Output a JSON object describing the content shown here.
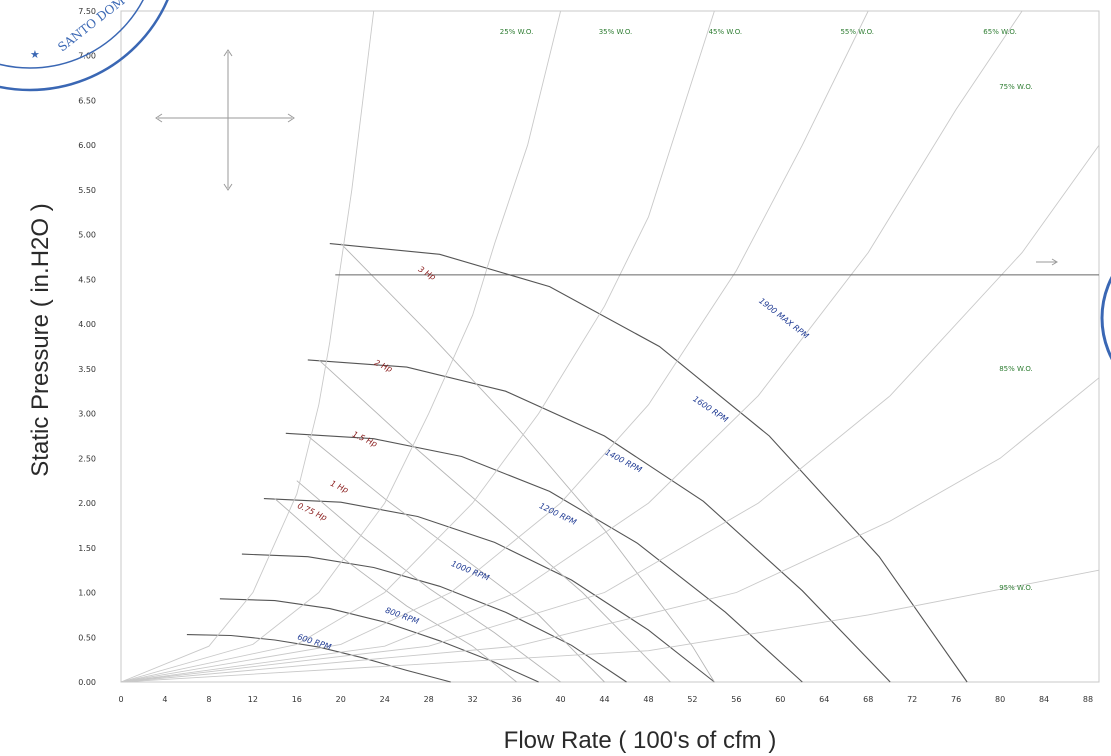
{
  "chart_data": {
    "type": "line",
    "xlabel": "Flow Rate ( 100's of cfm )",
    "ylabel": "Static Pressure ( in.H2O )",
    "xlim": [
      0,
      89
    ],
    "ylim": [
      0,
      7.5
    ],
    "x_ticks": [
      "0",
      "4",
      "8",
      "12",
      "16",
      "20",
      "24",
      "28",
      "32",
      "36",
      "40",
      "44",
      "48",
      "52",
      "56",
      "60",
      "64",
      "68",
      "72",
      "76",
      "80",
      "84",
      "88"
    ],
    "y_ticks": [
      "0.00",
      "0.50",
      "1.00",
      "1.50",
      "2.00",
      "2.50",
      "3.00",
      "3.50",
      "4.00",
      "4.50",
      "5.00",
      "5.50",
      "6.00",
      "6.50",
      "7.00",
      "7.50"
    ],
    "grid": false,
    "operating_point": {
      "static_pressure": 4.55
    },
    "colors": {
      "rpm": "#1f3a93",
      "hp": "#8a1d1d",
      "efficiency": "#2e7d32",
      "curve": "#555555",
      "system": "#999999"
    },
    "series": [
      {
        "name": "600 RPM",
        "type": "rpm",
        "points": [
          [
            6,
            0.53
          ],
          [
            10,
            0.52
          ],
          [
            14,
            0.47
          ],
          [
            18,
            0.39
          ],
          [
            22,
            0.27
          ],
          [
            26,
            0.13
          ],
          [
            30,
            0.0
          ]
        ]
      },
      {
        "name": "800 RPM",
        "type": "rpm",
        "points": [
          [
            9,
            0.93
          ],
          [
            14,
            0.91
          ],
          [
            19,
            0.82
          ],
          [
            24,
            0.67
          ],
          [
            29,
            0.46
          ],
          [
            34,
            0.22
          ],
          [
            38,
            0.0
          ]
        ]
      },
      {
        "name": "1000 RPM",
        "type": "rpm",
        "points": [
          [
            11,
            1.43
          ],
          [
            17,
            1.4
          ],
          [
            23,
            1.28
          ],
          [
            29,
            1.07
          ],
          [
            35,
            0.78
          ],
          [
            41,
            0.41
          ],
          [
            46,
            0.0
          ]
        ]
      },
      {
        "name": "1200 RPM",
        "type": "rpm",
        "points": [
          [
            13,
            2.05
          ],
          [
            20,
            2.01
          ],
          [
            27,
            1.85
          ],
          [
            34,
            1.56
          ],
          [
            41,
            1.14
          ],
          [
            48,
            0.58
          ],
          [
            54,
            0.0
          ]
        ]
      },
      {
        "name": "1400 RPM",
        "type": "rpm",
        "points": [
          [
            15,
            2.78
          ],
          [
            23,
            2.72
          ],
          [
            31,
            2.52
          ],
          [
            39,
            2.13
          ],
          [
            47,
            1.55
          ],
          [
            55,
            0.78
          ],
          [
            62,
            0.0
          ]
        ]
      },
      {
        "name": "1600 RPM",
        "type": "rpm",
        "points": [
          [
            17,
            3.6
          ],
          [
            26,
            3.52
          ],
          [
            35,
            3.25
          ],
          [
            44,
            2.75
          ],
          [
            53,
            2.02
          ],
          [
            62,
            1.02
          ],
          [
            70,
            0.0
          ]
        ]
      },
      {
        "name": "1900 MAX RPM",
        "type": "rpm",
        "points": [
          [
            19,
            4.9
          ],
          [
            29,
            4.78
          ],
          [
            39,
            4.42
          ],
          [
            49,
            3.75
          ],
          [
            59,
            2.75
          ],
          [
            69,
            1.4
          ],
          [
            77,
            0.0
          ]
        ]
      },
      {
        "name": "0.75 Hp",
        "type": "hp",
        "points": [
          [
            14,
            2.05
          ],
          [
            20,
            1.4
          ],
          [
            26,
            0.85
          ],
          [
            32,
            0.4
          ],
          [
            36,
            0.0
          ]
        ]
      },
      {
        "name": "1 Hp",
        "type": "hp",
        "points": [
          [
            16,
            2.25
          ],
          [
            22,
            1.62
          ],
          [
            28,
            1.05
          ],
          [
            34,
            0.55
          ],
          [
            40,
            0.0
          ]
        ]
      },
      {
        "name": "1.5 Hp",
        "type": "hp",
        "points": [
          [
            17,
            2.75
          ],
          [
            24,
            2.05
          ],
          [
            31,
            1.4
          ],
          [
            38,
            0.75
          ],
          [
            44,
            0.0
          ]
        ]
      },
      {
        "name": "2 Hp",
        "type": "hp",
        "points": [
          [
            18,
            3.6
          ],
          [
            26,
            2.7
          ],
          [
            34,
            1.85
          ],
          [
            42,
            1.0
          ],
          [
            50,
            0.0
          ]
        ]
      },
      {
        "name": "3 Hp",
        "type": "hp",
        "points": [
          [
            20,
            4.9
          ],
          [
            28,
            3.9
          ],
          [
            36,
            2.85
          ],
          [
            44,
            1.7
          ],
          [
            52,
            0.4
          ],
          [
            54,
            0.0
          ]
        ]
      },
      {
        "name": "25% W.O.",
        "type": "system",
        "points": [
          [
            0,
            0
          ],
          [
            8,
            0.4
          ],
          [
            12,
            1.0
          ],
          [
            16,
            2.1
          ],
          [
            18,
            3.1
          ],
          [
            19,
            3.8
          ],
          [
            19.8,
            4.5
          ],
          [
            21,
            5.5
          ],
          [
            22,
            6.5
          ],
          [
            23,
            7.5
          ]
        ]
      },
      {
        "name": "35% W.O.",
        "type": "system",
        "points": [
          [
            0,
            0
          ],
          [
            12,
            0.42
          ],
          [
            18,
            1.0
          ],
          [
            24,
            2.0
          ],
          [
            28,
            3.0
          ],
          [
            32,
            4.1
          ],
          [
            34,
            4.9
          ],
          [
            37,
            6.0
          ],
          [
            40,
            7.5
          ]
        ]
      },
      {
        "name": "45% W.O.",
        "type": "system",
        "points": [
          [
            0,
            0
          ],
          [
            16,
            0.42
          ],
          [
            24,
            1.0
          ],
          [
            32,
            2.0
          ],
          [
            38,
            3.0
          ],
          [
            44,
            4.2
          ],
          [
            48,
            5.2
          ],
          [
            54,
            7.5
          ]
        ]
      },
      {
        "name": "55% W.O.",
        "type": "system",
        "points": [
          [
            0,
            0
          ],
          [
            20,
            0.42
          ],
          [
            30,
            1.0
          ],
          [
            40,
            2.0
          ],
          [
            48,
            3.1
          ],
          [
            56,
            4.6
          ],
          [
            62,
            6.0
          ],
          [
            68,
            7.5
          ]
        ]
      },
      {
        "name": "65% W.O.",
        "type": "system",
        "points": [
          [
            0,
            0
          ],
          [
            24,
            0.4
          ],
          [
            36,
            1.0
          ],
          [
            48,
            2.0
          ],
          [
            58,
            3.2
          ],
          [
            68,
            4.8
          ],
          [
            76,
            6.4
          ],
          [
            82,
            7.5
          ]
        ]
      },
      {
        "name": "75% W.O.",
        "type": "system",
        "points": [
          [
            0,
            0
          ],
          [
            28,
            0.4
          ],
          [
            44,
            1.0
          ],
          [
            58,
            2.0
          ],
          [
            70,
            3.2
          ],
          [
            82,
            4.8
          ],
          [
            89,
            6.0
          ]
        ]
      },
      {
        "name": "85% W.O.",
        "type": "system",
        "points": [
          [
            0,
            0
          ],
          [
            36,
            0.4
          ],
          [
            56,
            1.0
          ],
          [
            70,
            1.8
          ],
          [
            80,
            2.5
          ],
          [
            89,
            3.4
          ]
        ]
      },
      {
        "name": "95% W.O.",
        "type": "system",
        "points": [
          [
            0,
            0
          ],
          [
            48,
            0.35
          ],
          [
            68,
            0.75
          ],
          [
            89,
            1.25
          ]
        ]
      }
    ],
    "labels": {
      "rpm": [
        "600 RPM",
        "800 RPM",
        "1000 RPM",
        "1200 RPM",
        "1400 RPM",
        "1600 RPM",
        "1900 MAX RPM"
      ],
      "hp": [
        "0.75 Hp",
        "1 Hp",
        "1.5 Hp",
        "2 Hp",
        "3 Hp"
      ],
      "efficiency": [
        "25% W.O.",
        "35% W.O.",
        "45% W.O.",
        "55% W.O.",
        "65% W.O.",
        "75% W.O.",
        "85% W.O.",
        "95% W.O."
      ]
    }
  },
  "stamp_text": "SANTO DOMINGO"
}
